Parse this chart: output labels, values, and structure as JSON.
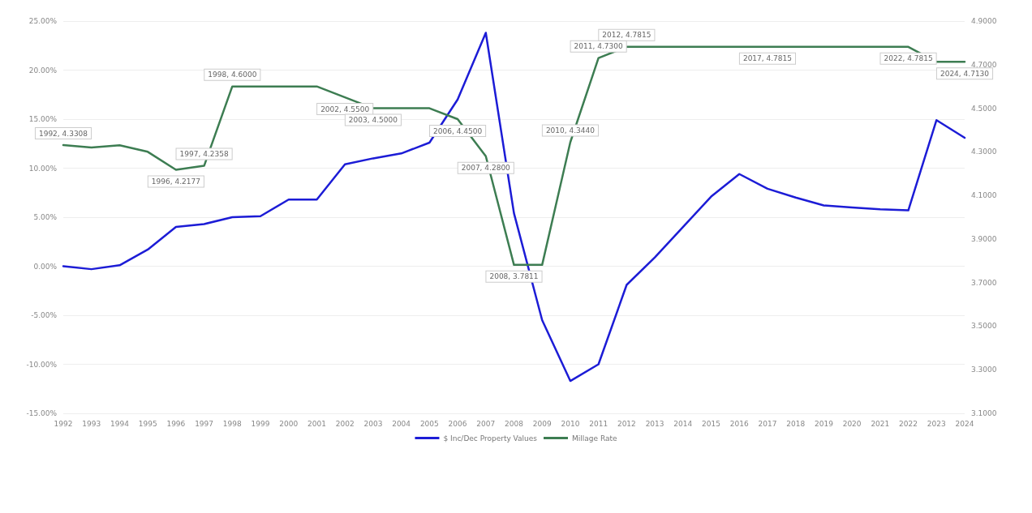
{
  "chart_data": {
    "type": "line",
    "categories": [
      "1992",
      "1993",
      "1994",
      "1995",
      "1996",
      "1997",
      "1998",
      "1999",
      "2000",
      "2001",
      "2002",
      "2003",
      "2004",
      "2005",
      "2006",
      "2007",
      "2008",
      "2009",
      "2010",
      "2011",
      "2012",
      "2013",
      "2014",
      "2015",
      "2016",
      "2017",
      "2018",
      "2019",
      "2020",
      "2021",
      "2022",
      "2023",
      "2024"
    ],
    "series": [
      {
        "name": "$ Inc/Dec Property Values",
        "color": "#1c1cd6",
        "values": [
          0.0,
          -0.3,
          0.1,
          1.7,
          4.0,
          4.3,
          5.0,
          5.1,
          6.8,
          6.8,
          10.4,
          11.0,
          11.5,
          12.6,
          17.0,
          23.8,
          5.4,
          -5.5,
          -11.7,
          -10.0,
          -1.9,
          0.9,
          4.0,
          7.1,
          9.4,
          7.9,
          7.0,
          6.2,
          6.0,
          5.8,
          5.7,
          14.9,
          13.1
        ]
      },
      {
        "name": "Millage Rate",
        "color": "#3d7d52",
        "axis": "y2",
        "values": [
          4.3308,
          4.32,
          4.33,
          4.3,
          4.2177,
          4.2358,
          4.6,
          4.6,
          4.6,
          4.6,
          4.55,
          4.5,
          4.5,
          4.5,
          4.45,
          4.28,
          3.7811,
          3.7811,
          4.344,
          4.73,
          4.7815,
          4.7815,
          4.7815,
          4.7815,
          4.7815,
          4.7815,
          4.7815,
          4.7815,
          4.7815,
          4.7815,
          4.7815,
          4.713,
          4.713
        ],
        "value_labels": [
          "1992, 4.3308",
          null,
          null,
          null,
          "1996, 4.2177",
          "1997, 4.2358",
          "1998, 4.6000",
          null,
          null,
          null,
          "2002, 4.5500",
          "2003, 4.5000",
          null,
          null,
          "2006, 4.4500",
          "2007, 4.2800",
          "2008, 3.7811",
          null,
          "2010, 4.3440",
          "2011, 4.7300",
          "2012, 4.7815",
          null,
          null,
          null,
          null,
          "2017, 4.7815",
          null,
          null,
          null,
          null,
          "2022, 4.7815",
          null,
          "2024, 4.7130"
        ]
      }
    ],
    "ylim": [
      -15,
      25
    ],
    "yticks": [
      {
        "value": -15,
        "label": "-15.00%"
      },
      {
        "value": -10,
        "label": "-10.00%"
      },
      {
        "value": -5,
        "label": "-5.00%"
      },
      {
        "value": 0,
        "label": "0.00%"
      },
      {
        "value": 5,
        "label": "5.00%"
      },
      {
        "value": 10,
        "label": "10.00%"
      },
      {
        "value": 15,
        "label": "15.00%"
      },
      {
        "value": 20,
        "label": "20.00%"
      },
      {
        "value": 25,
        "label": "25.00%"
      }
    ],
    "y2lim": [
      3.1,
      4.9
    ],
    "y2ticks": [
      {
        "value": 3.1,
        "label": "3.1000"
      },
      {
        "value": 3.3,
        "label": "3.3000"
      },
      {
        "value": 3.5,
        "label": "3.5000"
      },
      {
        "value": 3.7,
        "label": "3.7000"
      },
      {
        "value": 3.9,
        "label": "3.9000"
      },
      {
        "value": 4.1,
        "label": "4.1000"
      },
      {
        "value": 4.3,
        "label": "4.3000"
      },
      {
        "value": 4.5,
        "label": "4.5000"
      },
      {
        "value": 4.7,
        "label": "4.7000"
      },
      {
        "value": 4.9,
        "label": "4.9000"
      }
    ],
    "grid": "y",
    "legend": "bottom",
    "marker": "none",
    "line_style": "solid"
  }
}
